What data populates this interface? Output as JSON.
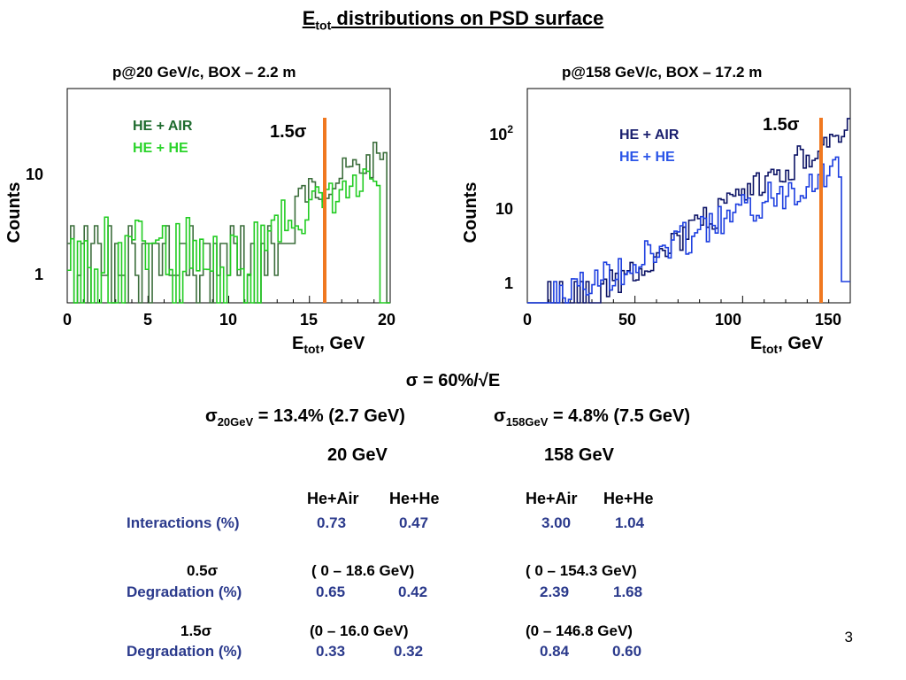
{
  "title": {
    "e": "E",
    "tot": "tot",
    "rest": " distributions on PSD surface"
  },
  "plots": [
    {
      "title": "p@20 GeV/c, BOX – 2.2 m",
      "ylabel": "Counts",
      "xlabel_main": "E",
      "xlabel_sub": "tot",
      "xlabel_unit": ",  GeV",
      "xticks": [
        "0",
        "5",
        "10",
        "15",
        "20"
      ],
      "yticks": [
        "10",
        "1"
      ],
      "legend": [
        "HE + AIR",
        "HE + HE"
      ],
      "legend_colors": [
        "#1e6b2e",
        "#2bd42b"
      ],
      "series_colors": [
        "#3c6e3c",
        "#22cc22"
      ],
      "cut_label": "1.5σ",
      "cut_color": "#f07820"
    },
    {
      "title": "p@158 GeV/c, BOX – 17.2 m",
      "ylabel": "Counts",
      "xlabel_main": "E",
      "xlabel_sub": "tot",
      "xlabel_unit": ",  GeV",
      "xticks": [
        "0",
        "50",
        "100",
        "150"
      ],
      "yticks_top_base": "10",
      "yticks_top_exp": "2",
      "yticks": [
        "10",
        "1"
      ],
      "legend": [
        "HE + AIR",
        "HE + HE"
      ],
      "legend_colors": [
        "#1a1f6e",
        "#2a55e8"
      ],
      "series_colors": [
        "#0d1466",
        "#1d3fe0"
      ],
      "cut_label": "1.5σ",
      "cut_color": "#f07820"
    }
  ],
  "formula": "σ = 60%/√E",
  "sigma20": {
    "sym": "σ",
    "sub": "20GeV",
    "text": " = 13.4% (2.7 GeV)"
  },
  "sigma158": {
    "sym": "σ",
    "sub": "158GeV",
    "text": " = 4.8% (7.5 GeV)"
  },
  "energy_headers": [
    "20 GeV",
    "158 GeV"
  ],
  "col_headers": [
    "He+Air",
    "He+He",
    "He+Air",
    "He+He"
  ],
  "rows": {
    "interactions": {
      "label": "Interactions (%)",
      "values": [
        "0.73",
        "0.47",
        "3.00",
        "1.04"
      ]
    },
    "half_sigma": {
      "label": "0.5σ",
      "range20": "( 0 – 18.6 GeV)",
      "range158": "( 0 – 154.3 GeV)"
    },
    "degradation_half": {
      "label": "Degradation (%)",
      "values": [
        "0.65",
        "0.42",
        "2.39",
        "1.68"
      ]
    },
    "one_half_sigma": {
      "label": "1.5σ",
      "range20": "(0 – 16.0 GeV)",
      "range158": "(0 – 146.8 GeV)"
    },
    "degradation_one_half": {
      "label": "Degradation (%)",
      "values": [
        "0.33",
        "0.32",
        "0.84",
        "0.60"
      ]
    }
  },
  "page_number": "3"
}
